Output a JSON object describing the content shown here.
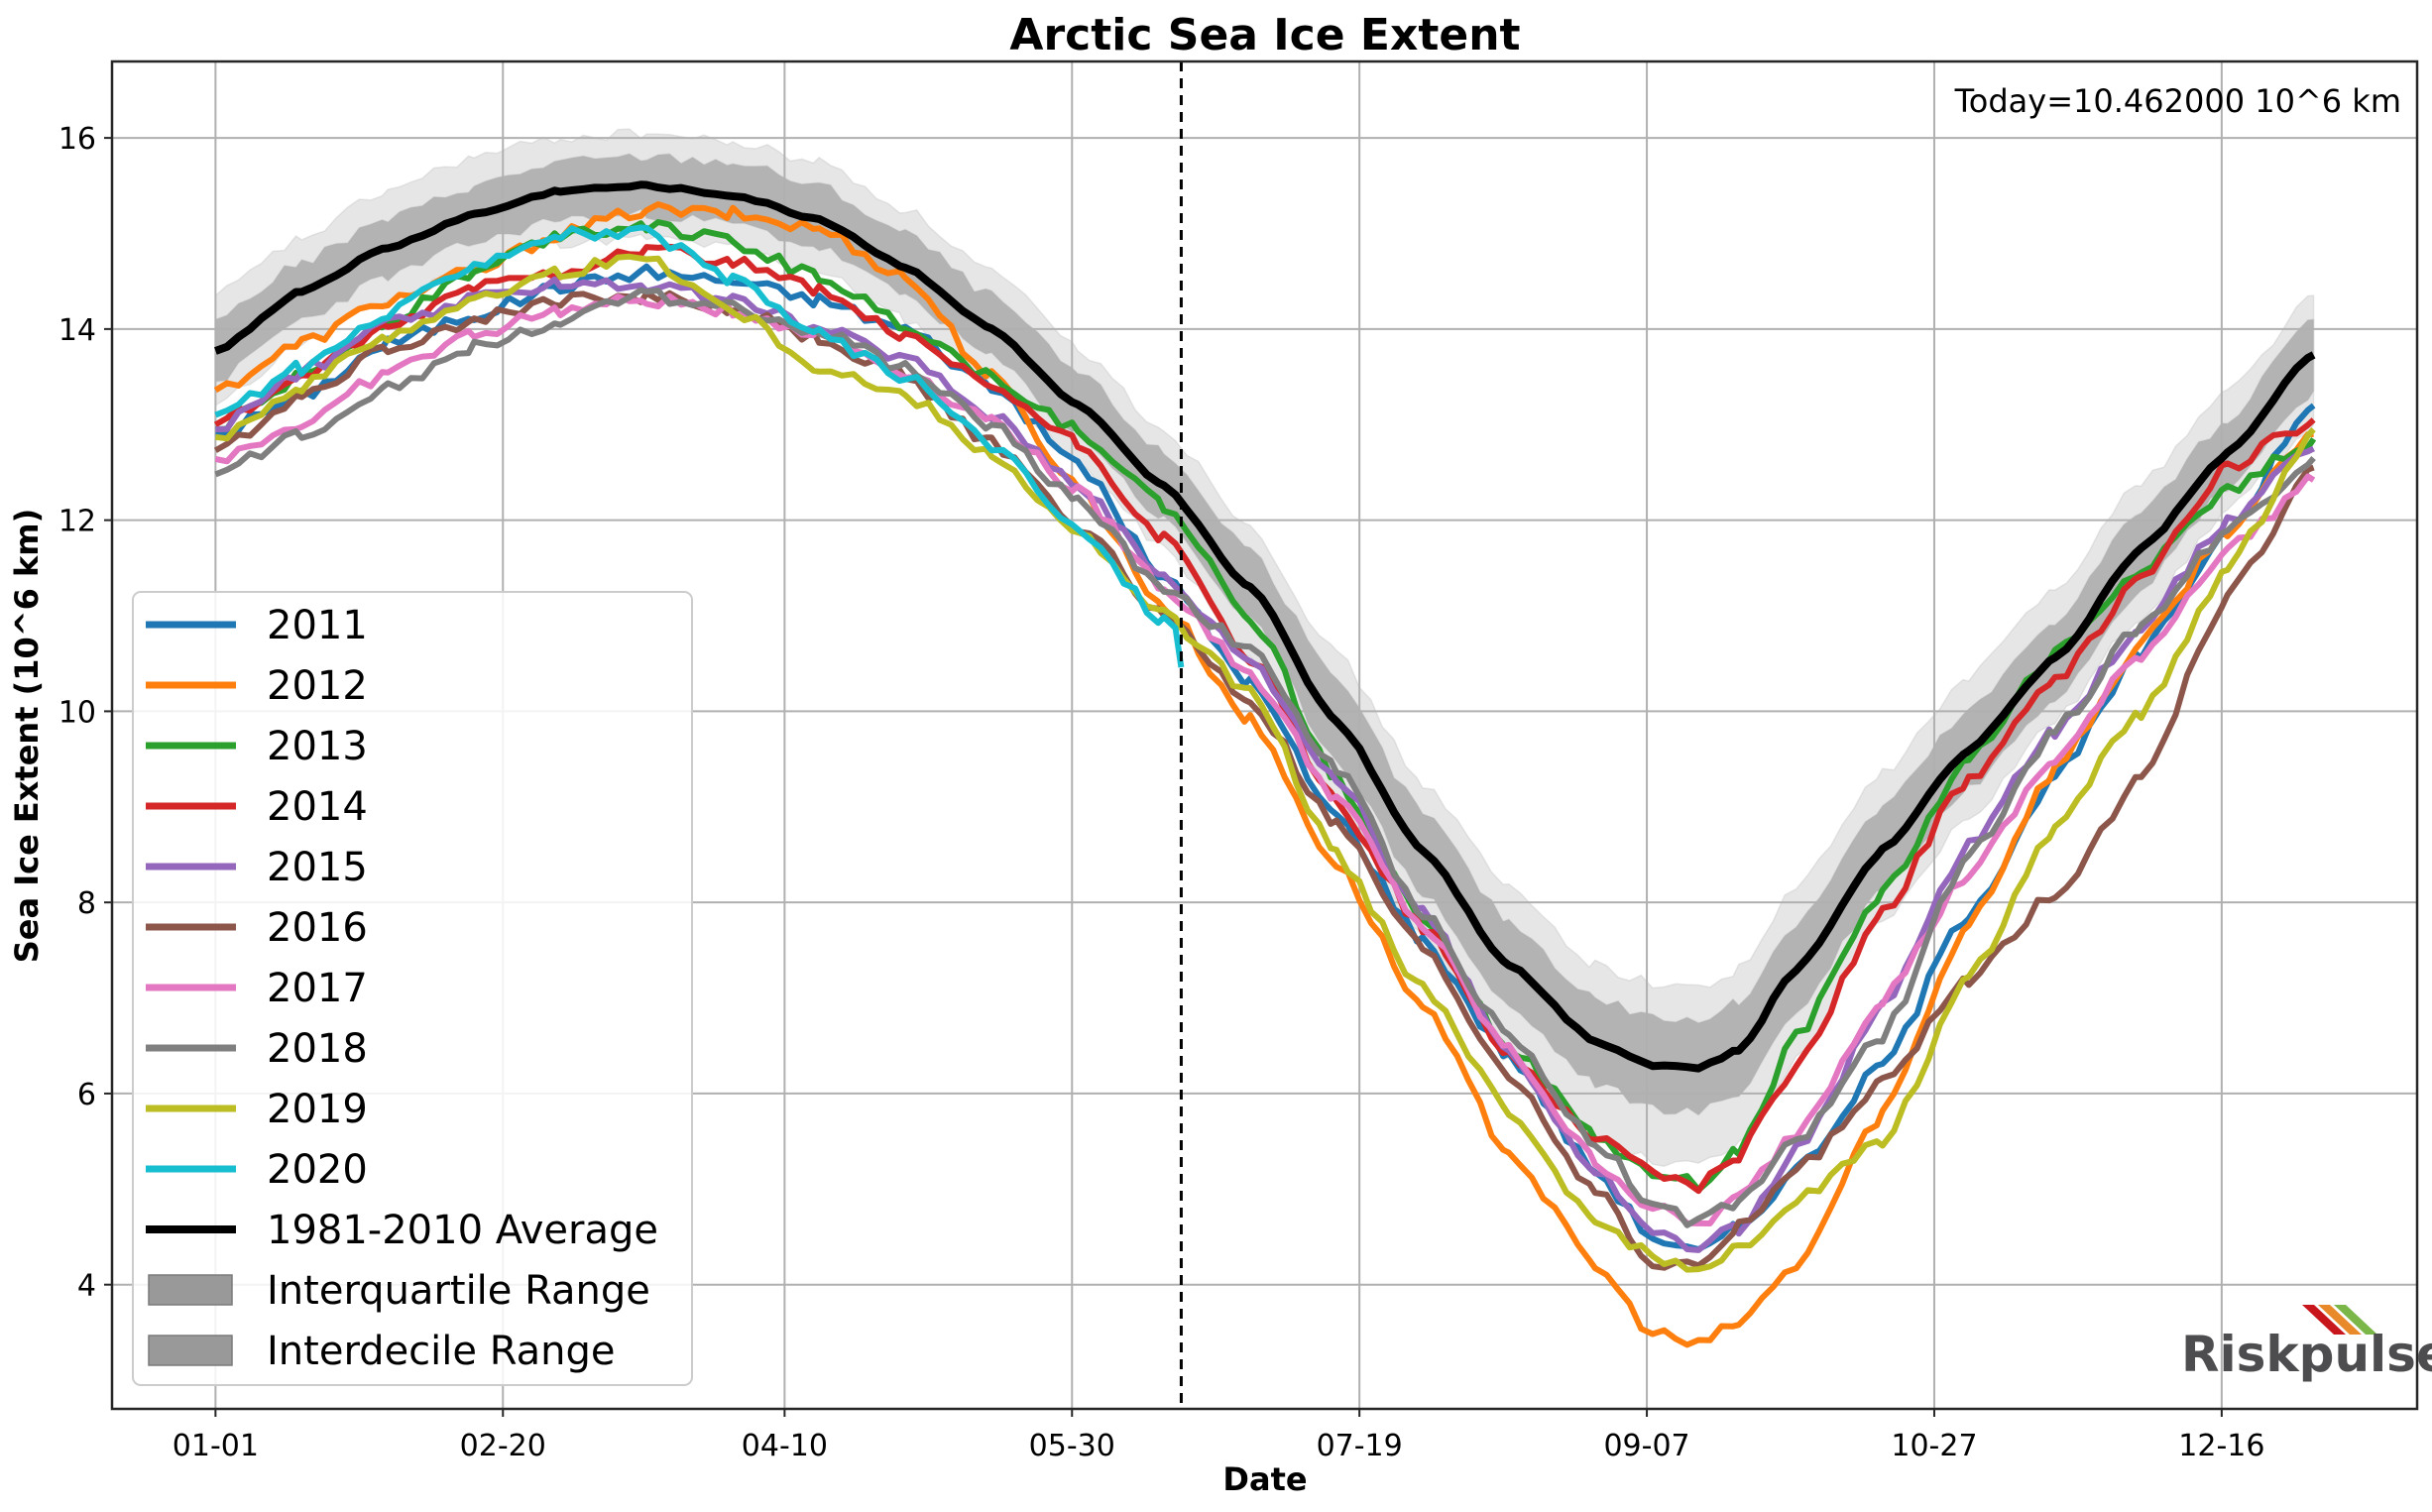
{
  "chart_data": {
    "type": "line",
    "title": "Arctic Sea Ice Extent",
    "xlabel": "Date",
    "ylabel": "Sea Ice Extent (10^6 km)",
    "annotation": "Today=10.462000 10^6 km",
    "today_marker_day": 168,
    "x_unit": "day of year (0 = 01-01)",
    "xlim": [
      -18,
      383
    ],
    "ylim": [
      2.7,
      16.8
    ],
    "grid": true,
    "legend_position": "lower-left",
    "x_ticks": [
      {
        "day": 0,
        "label": "01-01"
      },
      {
        "day": 50,
        "label": "02-20"
      },
      {
        "day": 99,
        "label": "04-10"
      },
      {
        "day": 149,
        "label": "05-30"
      },
      {
        "day": 199,
        "label": "07-19"
      },
      {
        "day": 249,
        "label": "09-07"
      },
      {
        "day": 299,
        "label": "10-27"
      },
      {
        "day": 349,
        "label": "12-16"
      }
    ],
    "y_ticks": [
      {
        "value": 4,
        "label": "4"
      },
      {
        "value": 6,
        "label": "6"
      },
      {
        "value": 8,
        "label": "8"
      },
      {
        "value": 10,
        "label": "10"
      },
      {
        "value": 12,
        "label": "12"
      },
      {
        "value": 14,
        "label": "14"
      },
      {
        "value": 16,
        "label": "16"
      }
    ],
    "x": [
      0,
      15,
      30,
      45,
      60,
      75,
      90,
      105,
      120,
      135,
      150,
      165,
      180,
      195,
      210,
      225,
      240,
      250,
      258,
      265,
      275,
      290,
      305,
      320,
      335,
      350,
      365
    ],
    "average": {
      "name": "1981-2010 Average",
      "color": "#000000",
      "values": [
        13.77,
        14.4,
        14.85,
        15.2,
        15.45,
        15.5,
        15.4,
        15.15,
        14.65,
        14.0,
        13.2,
        12.35,
        11.3,
        9.9,
        8.55,
        7.35,
        6.55,
        6.3,
        6.27,
        6.45,
        7.3,
        8.55,
        9.6,
        10.55,
        11.7,
        12.7,
        13.73
      ]
    },
    "interquartile": {
      "name": "Interquartile Range",
      "color": "#b3b3b3",
      "lower": [
        13.45,
        14.1,
        14.55,
        14.9,
        15.15,
        15.2,
        15.1,
        14.85,
        14.35,
        13.7,
        12.9,
        12.0,
        10.95,
        9.5,
        8.1,
        6.9,
        6.1,
        5.85,
        5.8,
        6.0,
        6.85,
        8.15,
        9.2,
        10.15,
        11.3,
        12.35,
        13.35
      ],
      "upper": [
        14.1,
        14.7,
        15.15,
        15.5,
        15.75,
        15.8,
        15.75,
        15.5,
        15.0,
        14.35,
        13.55,
        12.7,
        11.7,
        10.3,
        8.95,
        7.8,
        7.0,
        6.8,
        6.75,
        6.95,
        7.8,
        9.0,
        10.0,
        10.95,
        12.1,
        13.05,
        14.1
      ]
    },
    "interdecile": {
      "name": "Interdecile Range",
      "color": "#e6e6e6",
      "lower": [
        13.2,
        13.85,
        14.3,
        14.65,
        14.9,
        14.95,
        14.85,
        14.6,
        14.1,
        13.45,
        12.6,
        11.7,
        10.55,
        9.1,
        7.6,
        6.35,
        5.55,
        5.3,
        5.25,
        5.45,
        6.35,
        7.8,
        8.9,
        9.9,
        11.0,
        12.1,
        13.0
      ],
      "upper": [
        14.35,
        14.95,
        15.45,
        15.8,
        16.0,
        16.05,
        15.95,
        15.75,
        15.25,
        14.6,
        13.8,
        12.95,
        11.95,
        10.6,
        9.25,
        8.15,
        7.35,
        7.15,
        7.1,
        7.3,
        8.15,
        9.35,
        10.35,
        11.3,
        12.4,
        13.35,
        14.35
      ]
    },
    "series": [
      {
        "name": "2011",
        "color": "#1f77b4",
        "values": [
          12.9,
          13.3,
          13.85,
          14.15,
          14.45,
          14.6,
          14.5,
          14.3,
          14.0,
          13.4,
          12.6,
          11.4,
          10.3,
          8.9,
          7.6,
          6.4,
          5.2,
          4.5,
          4.33,
          4.6,
          5.2,
          6.3,
          7.9,
          9.3,
          10.6,
          11.9,
          13.2
        ],
        "end_day": 365
      },
      {
        "name": "2012",
        "color": "#ff7f0e",
        "values": [
          13.36,
          13.85,
          14.3,
          14.6,
          15.0,
          15.25,
          15.2,
          15.05,
          14.55,
          13.5,
          12.35,
          11.1,
          9.9,
          8.4,
          6.9,
          5.4,
          4.2,
          3.5,
          3.36,
          3.6,
          4.2,
          5.8,
          7.8,
          9.4,
          10.7,
          11.9,
          12.9
        ],
        "end_day": 365
      },
      {
        "name": "2013",
        "color": "#2ca02c",
        "values": [
          12.95,
          13.5,
          14.1,
          14.6,
          15.0,
          15.1,
          14.9,
          14.55,
          14.05,
          13.5,
          12.95,
          12.15,
          11.0,
          9.3,
          7.85,
          6.5,
          5.55,
          5.15,
          5.05,
          5.4,
          6.6,
          8.1,
          9.5,
          10.6,
          11.5,
          12.3,
          12.85
        ],
        "end_day": 365
      },
      {
        "name": "2014",
        "color": "#d62728",
        "values": [
          13.0,
          13.5,
          14.0,
          14.45,
          14.6,
          14.85,
          14.7,
          14.4,
          13.9,
          13.4,
          12.8,
          11.8,
          10.55,
          9.05,
          7.75,
          6.4,
          5.55,
          5.2,
          5.02,
          5.35,
          6.3,
          7.9,
          9.3,
          10.3,
          11.4,
          12.55,
          13.05
        ],
        "end_day": 365
      },
      {
        "name": "2015",
        "color": "#9467bd",
        "values": [
          12.95,
          13.55,
          14.05,
          14.3,
          14.5,
          14.45,
          14.3,
          14.0,
          13.7,
          13.1,
          12.4,
          11.4,
          10.55,
          9.3,
          7.9,
          6.45,
          5.2,
          4.55,
          4.38,
          4.6,
          5.4,
          6.9,
          8.6,
          9.8,
          10.9,
          12.0,
          12.75
        ],
        "end_day": 365
      },
      {
        "name": "2016",
        "color": "#8c564b",
        "values": [
          12.73,
          13.3,
          13.8,
          14.1,
          14.3,
          14.35,
          14.2,
          13.9,
          13.5,
          12.8,
          11.95,
          11.0,
          10.1,
          8.8,
          7.5,
          6.2,
          5.0,
          4.2,
          4.2,
          4.6,
          5.2,
          6.1,
          7.2,
          8.1,
          9.3,
          11.2,
          12.55
        ],
        "end_day": 365
      },
      {
        "name": "2017",
        "color": "#e377c2",
        "values": [
          12.64,
          13.0,
          13.55,
          13.95,
          14.2,
          14.3,
          14.2,
          13.95,
          13.55,
          13.05,
          12.3,
          11.3,
          10.4,
          9.1,
          7.75,
          6.45,
          5.3,
          4.8,
          4.62,
          4.9,
          5.6,
          7.0,
          8.3,
          9.5,
          10.6,
          11.7,
          12.42
        ],
        "end_day": 365
      },
      {
        "name": "2018",
        "color": "#7f7f7f",
        "values": [
          12.48,
          12.9,
          13.4,
          13.8,
          14.1,
          14.35,
          14.25,
          13.95,
          13.6,
          13.0,
          12.2,
          11.3,
          10.65,
          9.4,
          7.9,
          6.6,
          5.5,
          4.85,
          4.65,
          4.85,
          5.5,
          6.6,
          8.5,
          9.8,
          10.9,
          11.9,
          12.65
        ],
        "end_day": 365
      },
      {
        "name": "2019",
        "color": "#bcbd22",
        "values": [
          12.87,
          13.4,
          13.95,
          14.3,
          14.6,
          14.75,
          14.2,
          13.6,
          13.3,
          12.7,
          11.85,
          11.0,
          10.2,
          8.5,
          7.1,
          5.8,
          4.7,
          4.3,
          4.1,
          4.4,
          4.9,
          5.5,
          7.2,
          8.8,
          10.0,
          11.5,
          12.95
        ],
        "end_day": 365
      },
      {
        "name": "2020",
        "color": "#17becf",
        "values": [
          13.1,
          13.6,
          14.15,
          14.7,
          15.0,
          15.0,
          14.5,
          13.95,
          13.5,
          12.8,
          11.9,
          10.95,
          10.46
        ],
        "end_day": 168
      }
    ]
  },
  "legend": {
    "items": [
      {
        "label": "2011",
        "kind": "line",
        "color": "#1f77b4"
      },
      {
        "label": "2012",
        "kind": "line",
        "color": "#ff7f0e"
      },
      {
        "label": "2013",
        "kind": "line",
        "color": "#2ca02c"
      },
      {
        "label": "2014",
        "kind": "line",
        "color": "#d62728"
      },
      {
        "label": "2015",
        "kind": "line",
        "color": "#9467bd"
      },
      {
        "label": "2016",
        "kind": "line",
        "color": "#8c564b"
      },
      {
        "label": "2017",
        "kind": "line",
        "color": "#e377c2"
      },
      {
        "label": "2018",
        "kind": "line",
        "color": "#7f7f7f"
      },
      {
        "label": "2019",
        "kind": "line",
        "color": "#bcbd22"
      },
      {
        "label": "2020",
        "kind": "line",
        "color": "#17becf"
      },
      {
        "label": "1981-2010 Average",
        "kind": "line",
        "color": "#000000"
      },
      {
        "label": "Interquartile Range",
        "kind": "patch",
        "color": "#999999"
      },
      {
        "label": "Interdecile Range",
        "kind": "patch",
        "color": "#999999"
      }
    ]
  },
  "logo": {
    "text": "Riskpulse",
    "stripe_colors": [
      "#c8161d",
      "#e88a2a",
      "#7ab648"
    ]
  }
}
